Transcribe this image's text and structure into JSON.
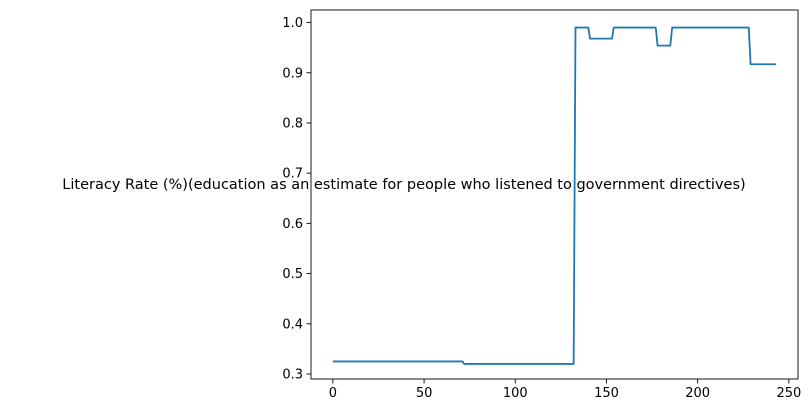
{
  "chart_data": {
    "type": "line",
    "title": "",
    "xlabel": "",
    "ylabel": "Literacy Rate (%)(education as an estimate for people who listened to government directives)",
    "xlim": [
      -12,
      255
    ],
    "ylim": [
      0.29,
      1.025
    ],
    "x_ticks": [
      0,
      50,
      100,
      150,
      200,
      250
    ],
    "x_tick_labels": [
      "0",
      "50",
      "100",
      "150",
      "200",
      "250"
    ],
    "y_ticks": [
      0.3,
      0.4,
      0.5,
      0.6,
      0.7,
      0.8,
      0.9,
      1.0
    ],
    "y_tick_labels": [
      "0.3",
      "0.4",
      "0.5",
      "0.6",
      "0.7",
      "0.8",
      "0.9",
      "1.0"
    ],
    "grid": false,
    "legend": "none",
    "series_color": "#1f77b4",
    "series": [
      {
        "x": [
          0,
          71,
          72,
          132,
          133,
          140,
          141,
          153,
          154,
          177,
          178,
          185,
          186,
          228,
          229,
          243
        ],
        "y": [
          0.325,
          0.325,
          0.32,
          0.32,
          0.99,
          0.99,
          0.968,
          0.968,
          0.99,
          0.99,
          0.954,
          0.954,
          0.99,
          0.99,
          0.917,
          0.917
        ]
      }
    ]
  }
}
